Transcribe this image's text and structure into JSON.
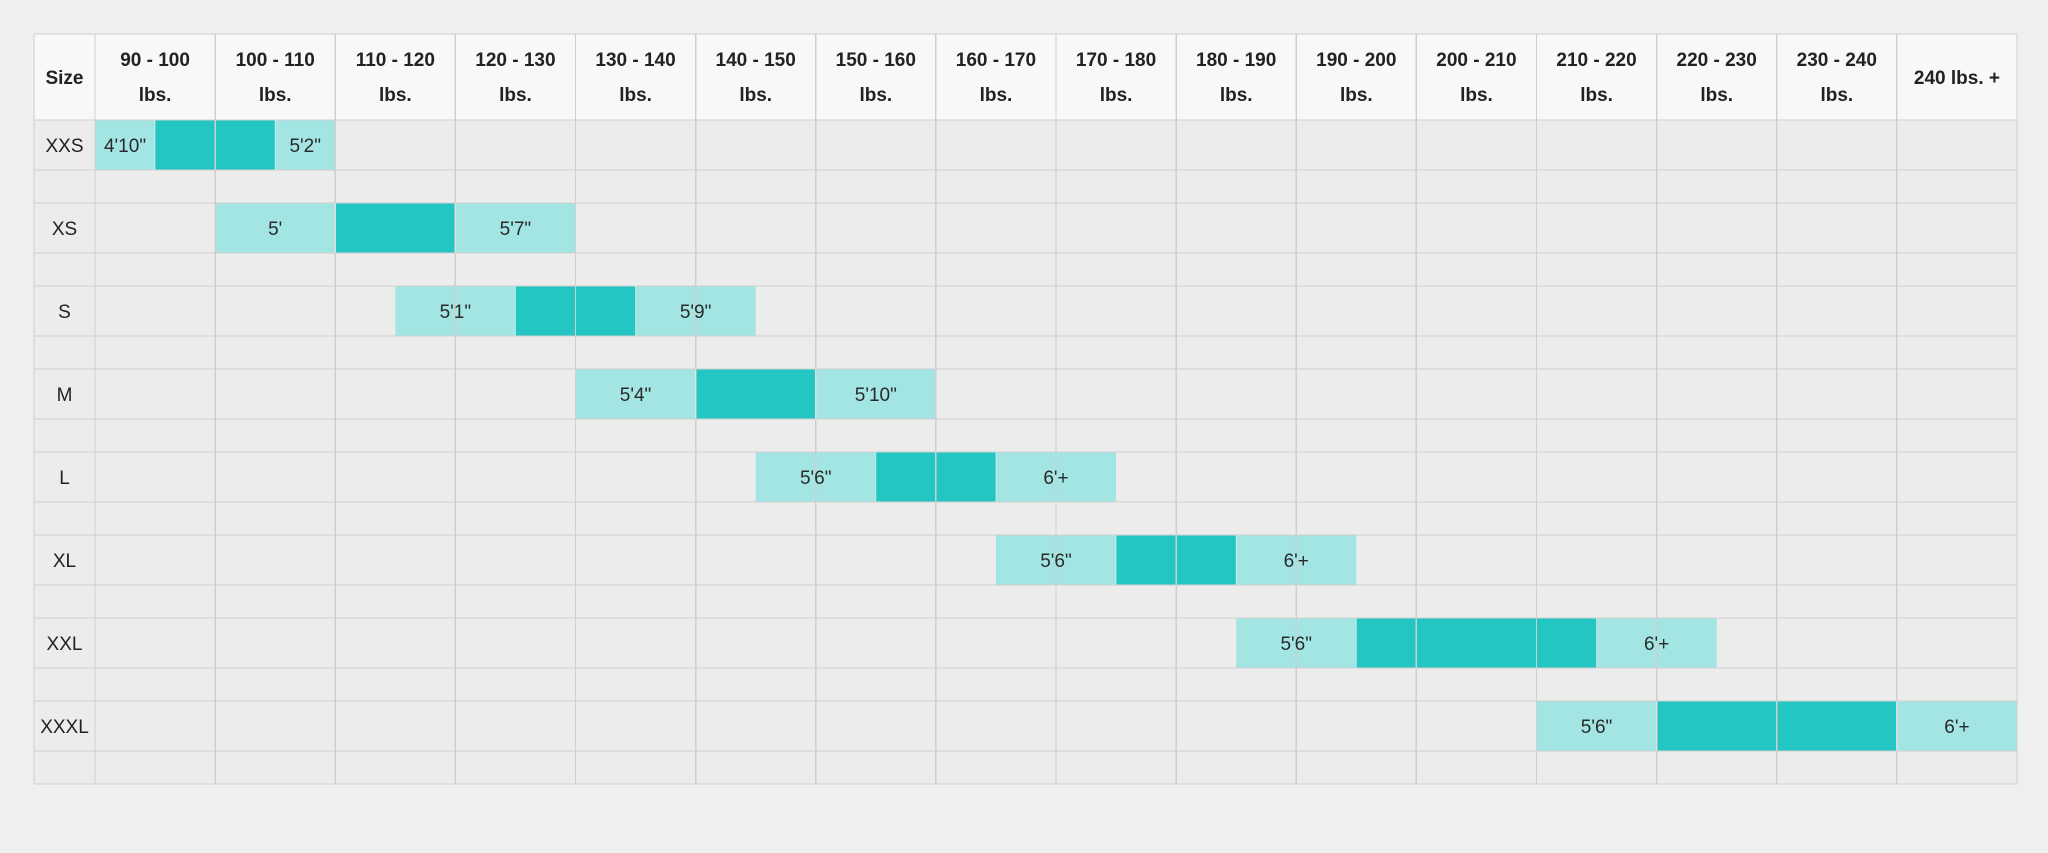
{
  "colors": {
    "page_background": "#efefef",
    "header_background": "#f8f8f8",
    "body_background": "#ececec",
    "grid_line": "#cfcfcf",
    "range_light": "#a2e5e2",
    "range_dark": "#23c6c3",
    "text": "#222222"
  },
  "chart_data": {
    "type": "table",
    "size_header": "Size",
    "weight_columns": [
      [
        "90 - 100",
        "lbs."
      ],
      [
        "100 - 110",
        "lbs."
      ],
      [
        "110 - 120",
        "lbs."
      ],
      [
        "120 - 130",
        "lbs."
      ],
      [
        "130 - 140",
        "lbs."
      ],
      [
        "140 - 150",
        "lbs."
      ],
      [
        "150 - 160",
        "lbs."
      ],
      [
        "160 - 170",
        "lbs."
      ],
      [
        "170 - 180",
        "lbs."
      ],
      [
        "180 - 190",
        "lbs."
      ],
      [
        "190 - 200",
        "lbs."
      ],
      [
        "200 - 210",
        "lbs."
      ],
      [
        "210 - 220",
        "lbs."
      ],
      [
        "220 - 230",
        "lbs."
      ],
      [
        "230 - 240",
        "lbs."
      ],
      [
        "240 lbs. +"
      ]
    ],
    "sizes": [
      {
        "size": "XXS",
        "weight_start": 0,
        "weight_end": 2,
        "core_start": 0.5,
        "core_end": 1.5,
        "min_height": "4'10\"",
        "max_height": "5'2\""
      },
      {
        "size": "XS",
        "weight_start": 1,
        "weight_end": 4,
        "core_start": 2,
        "core_end": 3,
        "min_height": "5'",
        "max_height": "5'7\""
      },
      {
        "size": "S",
        "weight_start": 2.5,
        "weight_end": 5.5,
        "core_start": 3.5,
        "core_end": 4.5,
        "min_height": "5'1\"",
        "max_height": "5'9\""
      },
      {
        "size": "M",
        "weight_start": 4,
        "weight_end": 7,
        "core_start": 5,
        "core_end": 6,
        "min_height": "5'4\"",
        "max_height": "5'10\""
      },
      {
        "size": "L",
        "weight_start": 5.5,
        "weight_end": 8.5,
        "core_start": 6.5,
        "core_end": 7.5,
        "min_height": "5'6\"",
        "max_height": "6'+"
      },
      {
        "size": "XL",
        "weight_start": 7.5,
        "weight_end": 10.5,
        "core_start": 8.5,
        "core_end": 9.5,
        "min_height": "5'6\"",
        "max_height": "6'+"
      },
      {
        "size": "XXL",
        "weight_start": 9.5,
        "weight_end": 13.5,
        "core_start": 10.5,
        "core_end": 12.5,
        "min_height": "5'6\"",
        "max_height": "6'+"
      },
      {
        "size": "XXXL",
        "weight_start": 12,
        "weight_end": 16,
        "core_start": 13,
        "core_end": 15,
        "min_height": "5'6\"",
        "max_height": "6'+"
      }
    ]
  }
}
